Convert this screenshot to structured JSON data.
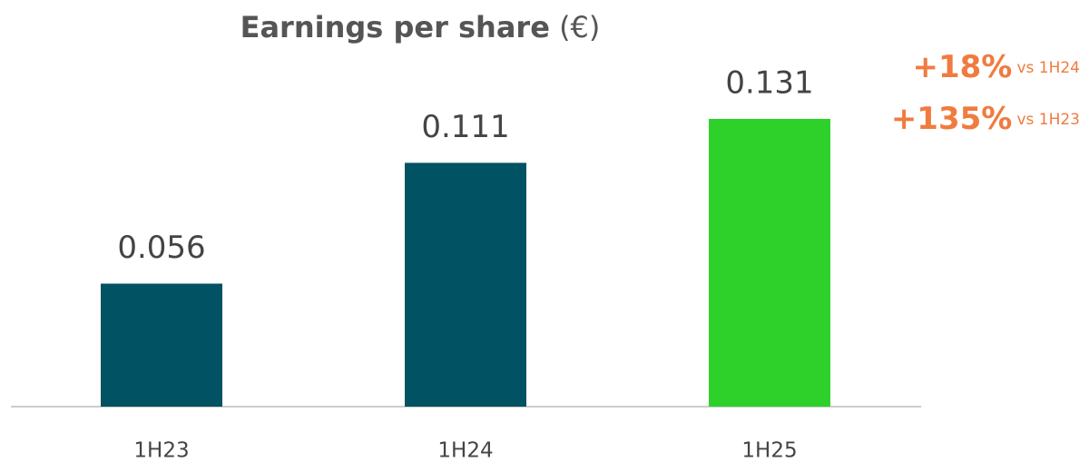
{
  "chart_data": {
    "type": "bar",
    "title": "Earnings per share",
    "title_unit": "(€)",
    "categories": [
      "1H23",
      "1H24",
      "1H25"
    ],
    "values": [
      0.056,
      0.111,
      0.131
    ],
    "colors": [
      "#015263",
      "#015263",
      "#2ed12a"
    ],
    "annotations": [
      {
        "highlight": "+18%",
        "text": "vs 1H24"
      },
      {
        "highlight": "+135%",
        "text": "vs 1H23"
      }
    ],
    "annotation_color": "#f07b3f"
  }
}
